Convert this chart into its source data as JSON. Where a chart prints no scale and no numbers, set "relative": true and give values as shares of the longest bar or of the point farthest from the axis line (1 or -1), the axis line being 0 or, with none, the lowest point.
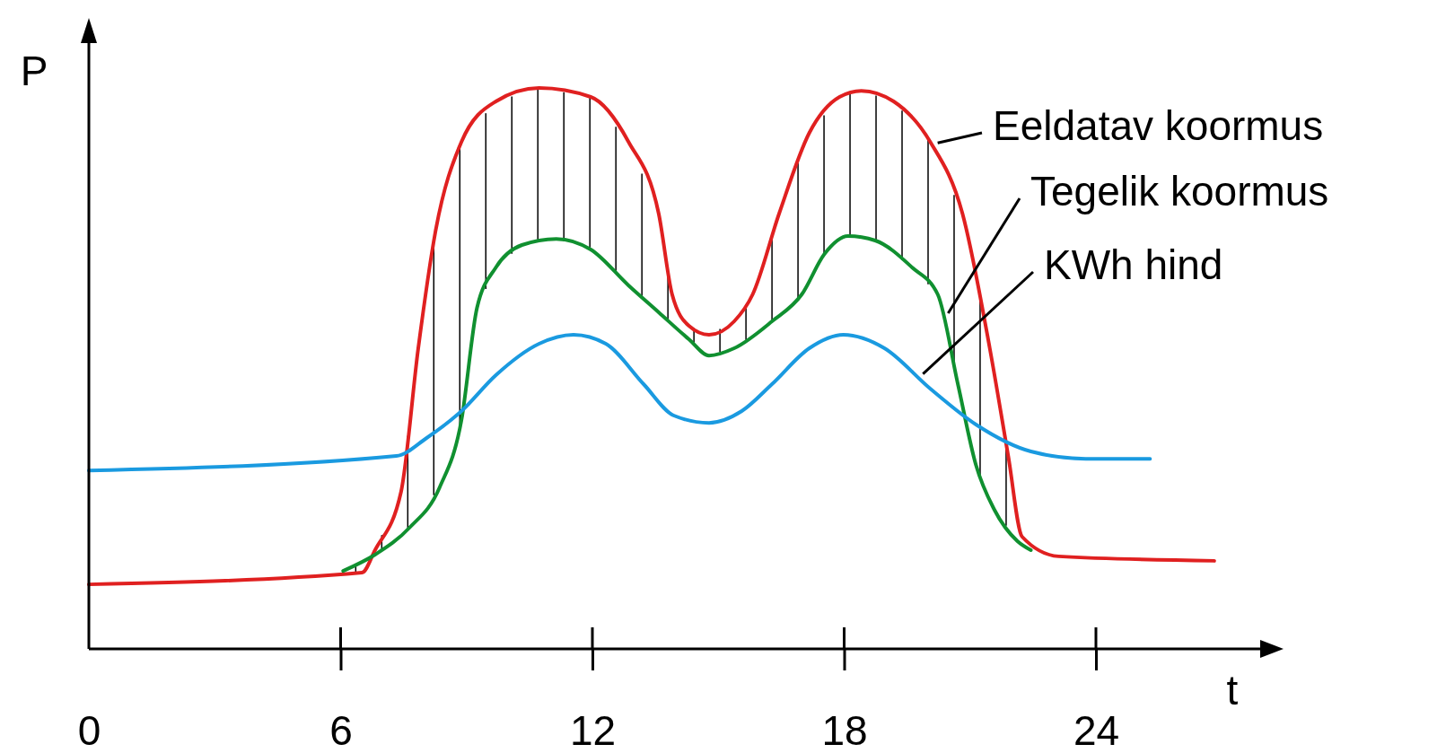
{
  "chart_data": {
    "type": "line",
    "relative": true,
    "xlabel": "t",
    "ylabel": "P",
    "xlim": [
      0,
      28
    ],
    "xticks": [
      0,
      6,
      12,
      18,
      24
    ],
    "legend": false,
    "grid": false,
    "marker": "none",
    "line_style": "solid",
    "series": [
      {
        "name": "Eeldatav koormus",
        "color": "#e02020",
        "x": [
          0,
          6.51,
          6.82,
          7.44,
          7.85,
          8.26,
          8.88,
          9.7,
          10.73,
          11.96,
          12.86,
          13.58,
          13.9,
          14.3,
          14.78,
          15.38,
          15.82,
          16.45,
          17.17,
          17.89,
          18.41,
          19.18,
          20.05,
          20.82,
          21.47,
          21.91,
          22.24,
          23.11,
          26.82
        ],
        "values": [
          0.115,
          0.136,
          0.176,
          0.28,
          0.536,
          0.744,
          0.904,
          0.976,
          1.0,
          0.984,
          0.904,
          0.776,
          0.632,
          0.576,
          0.56,
          0.584,
          0.632,
          0.776,
          0.92,
          0.984,
          0.995,
          0.976,
          0.904,
          0.776,
          0.536,
          0.344,
          0.2,
          0.165,
          0.157
        ]
      },
      {
        "name": "Tegelik koormus",
        "color": "#109030",
        "x": [
          6.06,
          6.82,
          7.64,
          8.36,
          8.88,
          9.25,
          9.7,
          10.32,
          11.14,
          11.96,
          12.86,
          13.58,
          14.3,
          14.78,
          15.38,
          16.28,
          16.99,
          17.53,
          18.09,
          18.74,
          19.62,
          20.23,
          20.71,
          21.14,
          21.58,
          22.13,
          22.45
        ],
        "values": [
          0.139,
          0.168,
          0.216,
          0.288,
          0.408,
          0.608,
          0.68,
          0.72,
          0.731,
          0.712,
          0.648,
          0.6,
          0.552,
          0.523,
          0.536,
          0.584,
          0.632,
          0.704,
          0.736,
          0.728,
          0.68,
          0.632,
          0.472,
          0.328,
          0.248,
          0.192,
          0.176
        ]
      },
      {
        "name": "KWh hind",
        "color": "#1a9ae0",
        "x": [
          0,
          7.33,
          8.05,
          8.88,
          9.7,
          10.73,
          11.55,
          12.32,
          13.22,
          13.94,
          14.78,
          15.56,
          16.28,
          17.17,
          17.98,
          18.96,
          20.05,
          21.14,
          22.45,
          23.76,
          25.29
        ],
        "values": [
          0.318,
          0.344,
          0.376,
          0.424,
          0.488,
          0.544,
          0.56,
          0.544,
          0.472,
          0.416,
          0.403,
          0.424,
          0.472,
          0.536,
          0.56,
          0.536,
          0.464,
          0.4,
          0.352,
          0.339,
          0.339
        ]
      }
    ]
  }
}
